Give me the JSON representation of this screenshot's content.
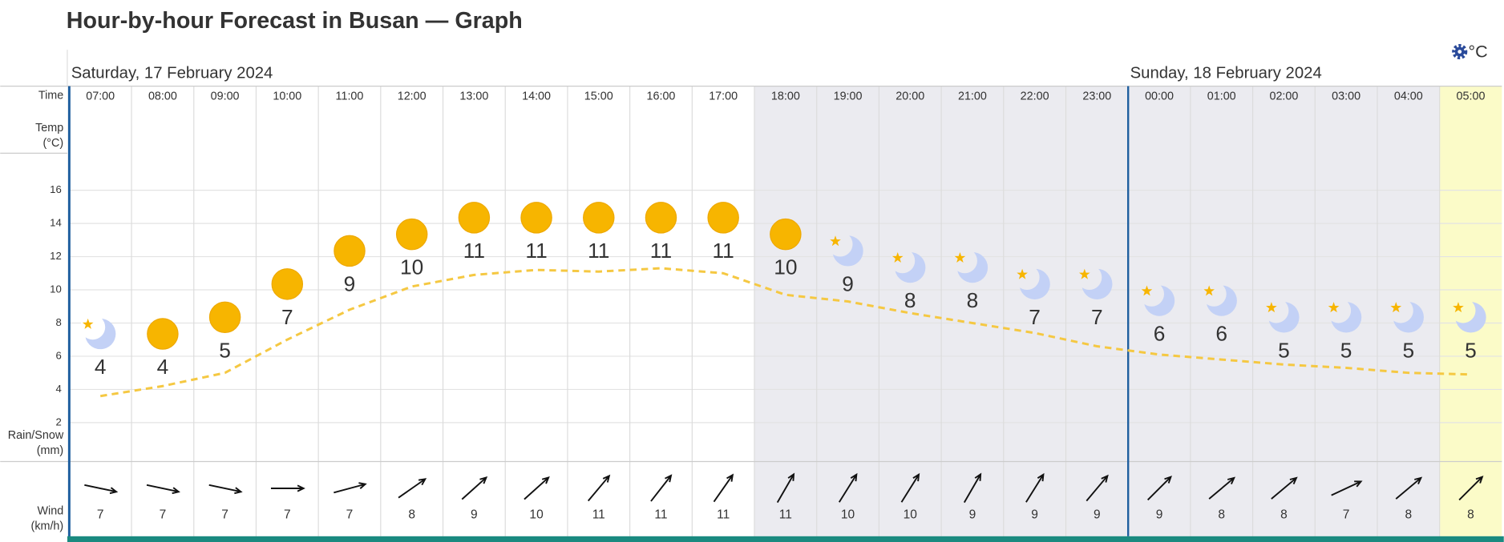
{
  "chart_data": {
    "type": "weather-graph",
    "title": "Hour-by-hour Forecast in Busan — Graph",
    "unit_toggle": "°C",
    "days": [
      "Saturday, 17 February 2024",
      "Sunday, 18 February 2024"
    ],
    "row_labels": {
      "time": "Time",
      "temp": [
        "Temp",
        "(°C)"
      ],
      "rain": [
        "Rain/Snow",
        "(mm)"
      ],
      "wind": [
        "Wind",
        "(km/h)"
      ]
    },
    "categories": [
      "07:00",
      "08:00",
      "09:00",
      "10:00",
      "11:00",
      "12:00",
      "13:00",
      "14:00",
      "15:00",
      "16:00",
      "17:00",
      "18:00",
      "19:00",
      "20:00",
      "21:00",
      "22:00",
      "23:00",
      "00:00",
      "01:00",
      "02:00",
      "03:00",
      "04:00",
      "05:00"
    ],
    "column_colors": [
      "#ffffff",
      "#ffffff",
      "#ffffff",
      "#ffffff",
      "#ffffff",
      "#ffffff",
      "#ffffff",
      "#ffffff",
      "#ffffff",
      "#ffffff",
      "#ffffff",
      "#ebebf0",
      "#ebebf0",
      "#ebebf0",
      "#ebebf0",
      "#ebebf0",
      "#ebebf0",
      "#ebebf0",
      "#ebebf0",
      "#ebebf0",
      "#ebebf0",
      "#ebebf0",
      "#fbfbc8"
    ],
    "icons": [
      "moon",
      "sun",
      "sun",
      "sun",
      "sun",
      "sun",
      "sun",
      "sun",
      "sun",
      "sun",
      "sun",
      "sun",
      "moon",
      "moon",
      "moon",
      "moon",
      "moon",
      "moon",
      "moon",
      "moon",
      "moon",
      "moon",
      "moon"
    ],
    "temperatures": [
      4,
      4,
      5,
      7,
      9,
      10,
      11,
      11,
      11,
      11,
      11,
      10,
      9,
      8,
      8,
      7,
      7,
      6,
      6,
      5,
      5,
      5,
      5
    ],
    "trend": {
      "color": "#f5c842",
      "values": [
        3.6,
        4.2,
        5.0,
        7.0,
        8.8,
        10.2,
        10.9,
        11.2,
        11.1,
        11.3,
        11.0,
        9.7,
        9.3,
        8.6,
        8.0,
        7.4,
        6.6,
        6.1,
        5.8,
        5.5,
        5.3,
        5.0,
        4.9
      ]
    },
    "wind_speed": [
      7,
      7,
      7,
      7,
      7,
      8,
      9,
      10,
      11,
      11,
      11,
      11,
      10,
      10,
      9,
      9,
      9,
      9,
      8,
      8,
      7,
      8,
      8
    ],
    "wind_direction": [
      -12,
      -12,
      -12,
      0,
      15,
      35,
      42,
      42,
      50,
      52,
      55,
      60,
      58,
      58,
      60,
      58,
      50,
      45,
      40,
      40,
      25,
      40,
      45
    ],
    "ylim": [
      0,
      18
    ],
    "yticks": [
      2,
      4,
      6,
      8,
      10,
      12,
      14,
      16
    ],
    "grid": true
  }
}
